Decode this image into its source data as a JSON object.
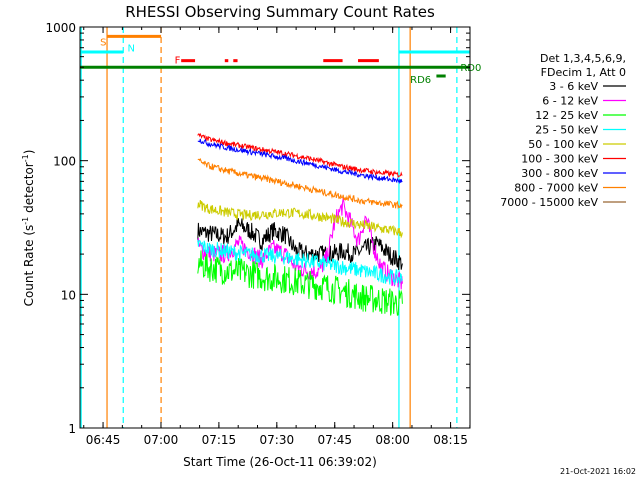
{
  "chart_data": {
    "type": "line",
    "title": "RHESSI Observing Summary Count Rates",
    "xlabel": "Start Time (26-Oct-11 06:39:02)",
    "ylabel_parts": [
      "Count Rate (s",
      "-1",
      " detector",
      "-1",
      ")"
    ],
    "x_unit": "minutes after 06:39:02",
    "xlim": [
      0,
      101
    ],
    "ylim": [
      1,
      1000
    ],
    "yscale": "log",
    "grid": false,
    "x_ticks": [
      {
        "value": 5.97,
        "label": "06:45"
      },
      {
        "value": 20.97,
        "label": "07:00"
      },
      {
        "value": 35.97,
        "label": "07:15"
      },
      {
        "value": 50.97,
        "label": "07:30"
      },
      {
        "value": 65.97,
        "label": "07:45"
      },
      {
        "value": 80.97,
        "label": "08:00"
      },
      {
        "value": 95.97,
        "label": "08:15"
      }
    ],
    "y_ticks": [
      {
        "value": 1,
        "label": "1"
      },
      {
        "value": 10,
        "label": "10"
      },
      {
        "value": 100,
        "label": "100"
      },
      {
        "value": 1000,
        "label": "1000"
      }
    ],
    "legend_position": "right",
    "legend_header": [
      "Det 1,3,4,5,6,9,",
      "FDecim 1, Att 0"
    ],
    "series": [
      {
        "name": "3 - 6 keV",
        "color": "#000000",
        "x": [
          30.5,
          32,
          35,
          38,
          41,
          44,
          47,
          50,
          53,
          56,
          59,
          62,
          65,
          68,
          71,
          74,
          77,
          80,
          83.5
        ],
        "y": [
          30,
          29,
          28,
          27,
          33,
          30,
          25,
          30,
          28,
          21,
          20,
          20,
          20,
          21,
          20,
          22,
          24,
          20,
          17
        ]
      },
      {
        "name": "6 - 12 keV",
        "color": "#ff00ff",
        "x": [
          30.5,
          32,
          35,
          38,
          41,
          44,
          47,
          50,
          53,
          56,
          59,
          62,
          64,
          66,
          68,
          70,
          72,
          74,
          76,
          78,
          80,
          83.5
        ],
        "y": [
          23,
          21,
          20,
          20,
          24,
          21,
          18,
          22,
          20,
          16,
          15,
          15,
          19,
          35,
          46,
          35,
          25,
          38,
          23,
          16,
          14,
          12
        ]
      },
      {
        "name": "12 - 25 keV",
        "color": "#00ff00",
        "x": [
          30.5,
          33,
          38,
          43,
          48,
          53,
          58,
          63,
          68,
          73,
          78,
          83.5
        ],
        "y": [
          17,
          16,
          15,
          14.5,
          13.5,
          13,
          12,
          11.5,
          10.5,
          9.5,
          9,
          8.5
        ]
      },
      {
        "name": "25 - 50 keV",
        "color": "#00ffff",
        "x": [
          30.5,
          33,
          38,
          43,
          48,
          53,
          58,
          63,
          68,
          73,
          78,
          83.5
        ],
        "y": [
          24,
          22,
          21,
          20,
          19.5,
          19,
          18,
          17,
          16,
          15,
          14,
          13
        ]
      },
      {
        "name": "50 - 100 keV",
        "color": "#cccc00",
        "x": [
          30.5,
          33,
          38,
          43,
          48,
          53,
          58,
          63,
          68,
          73,
          78,
          83.5
        ],
        "y": [
          48,
          44,
          41,
          39,
          40,
          41,
          40,
          38,
          35,
          33,
          31,
          29
        ]
      },
      {
        "name": "100 - 300 keV",
        "color": "#ff0000",
        "x": [
          30.5,
          33,
          38,
          43,
          48,
          53,
          58,
          63,
          68,
          73,
          78,
          83.5
        ],
        "y": [
          155,
          145,
          135,
          127,
          120,
          113,
          106,
          98,
          90,
          85,
          81,
          78
        ]
      },
      {
        "name": "300 - 800 keV",
        "color": "#0000ff",
        "x": [
          30.5,
          33,
          38,
          43,
          48,
          53,
          58,
          63,
          68,
          73,
          78,
          83.5
        ],
        "y": [
          145,
          135,
          125,
          118,
          111,
          104,
          97,
          90,
          83,
          78,
          74,
          70
        ]
      },
      {
        "name": "800 - 7000 keV",
        "color": "#ff8000",
        "x": [
          30.5,
          33,
          38,
          43,
          48,
          53,
          58,
          63,
          68,
          73,
          78,
          83.5
        ],
        "y": [
          100,
          92,
          84,
          78,
          73,
          68,
          63,
          58,
          54,
          50,
          48,
          46
        ]
      },
      {
        "name": "7000 - 15000 keV",
        "color": "#996633",
        "x": [],
        "y": []
      }
    ],
    "annotations": [
      {
        "label": "S",
        "color": "#ff8000",
        "x": 5.2,
        "y": 780
      },
      {
        "label": "N",
        "color": "#00ffff",
        "x": 12.3,
        "y": 700
      },
      {
        "label": "F",
        "color": "#ff0000",
        "x": 24.5,
        "y": 570
      },
      {
        "label": "RD0",
        "color": "#008000",
        "x": 98.5,
        "y": 500
      },
      {
        "label": "RD6",
        "color": "#008000",
        "x": 85.5,
        "y": 410
      }
    ],
    "state_bars": [
      {
        "name": "saa",
        "color": "#ff8000",
        "y": 850,
        "segments": [
          [
            7,
            21
          ]
        ]
      },
      {
        "name": "night",
        "color": "#00ffff",
        "y": 650,
        "segments": [
          [
            0,
            11.2
          ],
          [
            82.6,
            101
          ]
        ]
      },
      {
        "name": "flare",
        "color": "#ff0000",
        "y": 560,
        "segments": [
          [
            26.2,
            29.8
          ],
          [
            37.5,
            38.4
          ],
          [
            39.7,
            40.8
          ],
          [
            63,
            68
          ],
          [
            72,
            77.4
          ]
        ]
      },
      {
        "name": "decimation",
        "color": "#008000",
        "y": 500,
        "segments": [
          [
            0,
            101
          ]
        ]
      },
      {
        "name": "decimation-rd6",
        "color": "#008000",
        "y": 430,
        "segments": [
          [
            92.3,
            94.7
          ]
        ]
      }
    ],
    "vertical_markers": [
      {
        "name": "night-end",
        "x": 0.3,
        "color": "#00ffff",
        "dash": false
      },
      {
        "name": "saa-start",
        "x": 7.0,
        "color": "#ff8000",
        "dash": false
      },
      {
        "name": "night-start",
        "x": 11.2,
        "color": "#00ffff",
        "dash": true
      },
      {
        "name": "saa-end",
        "x": 21.0,
        "color": "#ff8000",
        "dash": true
      },
      {
        "name": "night-end",
        "x": 82.6,
        "color": "#00ffff",
        "dash": false
      },
      {
        "name": "saa-start",
        "x": 85.5,
        "color": "#ff8000",
        "dash": false
      },
      {
        "name": "night-start",
        "x": 97.6,
        "color": "#00ffff",
        "dash": true
      }
    ]
  },
  "timestamp": "21-Oct-2021 16:02"
}
